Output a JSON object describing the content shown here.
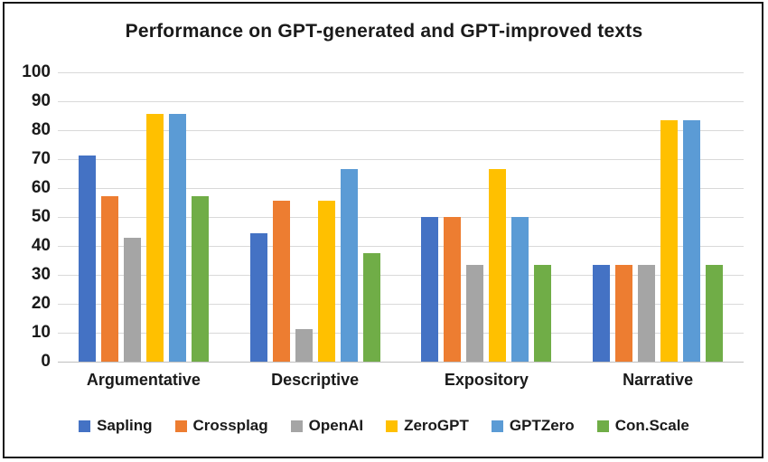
{
  "title": "Performance on GPT-generated and GPT-improved texts",
  "chart_data": {
    "type": "bar",
    "title": "Performance on GPT-generated and GPT-improved texts",
    "categories": [
      "Argumentative",
      "Descriptive",
      "Expository",
      "Narrative"
    ],
    "series": [
      {
        "name": "Sapling",
        "color": "#4472C4",
        "values": [
          71.4,
          44.4,
          50.0,
          33.3
        ]
      },
      {
        "name": "Crossplag",
        "color": "#ED7D31",
        "values": [
          57.1,
          55.6,
          50.0,
          33.3
        ]
      },
      {
        "name": "OpenAI",
        "color": "#A5A5A5",
        "values": [
          42.9,
          11.1,
          33.3,
          33.3
        ]
      },
      {
        "name": "ZeroGPT",
        "color": "#FFC000",
        "values": [
          85.7,
          55.6,
          66.7,
          83.3
        ]
      },
      {
        "name": "GPTZero",
        "color": "#5B9BD5",
        "values": [
          85.7,
          66.7,
          50.0,
          83.3
        ]
      },
      {
        "name": "Con.Scale",
        "color": "#70AD47",
        "values": [
          57.1,
          37.5,
          33.3,
          33.3
        ]
      }
    ],
    "xlabel": "",
    "ylabel": "",
    "ylim": [
      0,
      100
    ],
    "yticks": [
      0,
      10,
      20,
      30,
      40,
      50,
      60,
      70,
      80,
      90,
      100
    ],
    "grid": "horizontal",
    "legend_position": "bottom"
  },
  "colors": {
    "gridline": "#D9D9D9",
    "axis": "#BFBFBF",
    "text": "#1A1A1A",
    "background": "#FFFFFF",
    "border": "#161616"
  }
}
